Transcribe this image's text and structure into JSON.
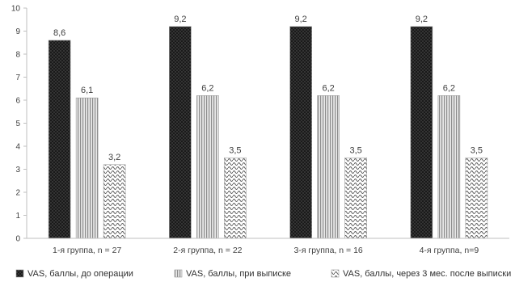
{
  "chart_data": {
    "type": "bar",
    "categories": [
      "1-я группа, n = 27",
      "2-я группа, n = 22",
      "3-я группа, n = 16",
      "4-я группа, n=9"
    ],
    "series": [
      {
        "name": "VAS, баллы,  до операции",
        "values": [
          8.6,
          9.2,
          9.2,
          9.2
        ],
        "labels": [
          "8,6",
          "9,2",
          "9,2",
          "9,2"
        ],
        "pattern": "dots-dark"
      },
      {
        "name": "VAS, баллы, при выписке",
        "values": [
          6.1,
          6.2,
          6.2,
          6.2
        ],
        "labels": [
          "6,1",
          "6,2",
          "6,2",
          "6,2"
        ],
        "pattern": "vertical-lines"
      },
      {
        "name": "VAS, баллы, через 3 мес. после выписки",
        "values": [
          3.2,
          3.5,
          3.5,
          3.5
        ],
        "labels": [
          "3,2",
          "3,5",
          "3,5",
          "3,5"
        ],
        "pattern": "wave"
      }
    ],
    "yticks": [
      "0",
      "1",
      "2",
      "3",
      "4",
      "5",
      "6",
      "7",
      "8",
      "9",
      "10"
    ],
    "ylim": [
      0,
      10
    ],
    "grid": false,
    "legend_position": "bottom",
    "title": "",
    "xlabel": "",
    "ylabel": ""
  }
}
